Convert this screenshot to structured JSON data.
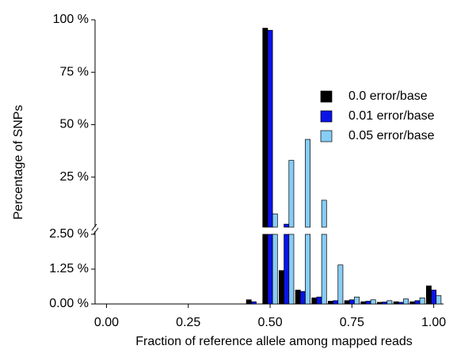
{
  "chart_data": {
    "type": "bar",
    "y_label": "Percentage of SNPs",
    "x_label": "Fraction of reference allele among mapped reads",
    "x": [
      0,
      0.05,
      0.1,
      0.15,
      0.2,
      0.25,
      0.3,
      0.35,
      0.4,
      0.45,
      0.5,
      0.55,
      0.6,
      0.65,
      0.7,
      0.75,
      0.8,
      0.85,
      0.9,
      0.95,
      1
    ],
    "series": [
      {
        "name": "0.0 error/base",
        "color": "#000000",
        "values": [
          0,
          0,
          0,
          0,
          0,
          0,
          0,
          0,
          0,
          0.15,
          96,
          1.2,
          0.5,
          0.22,
          0.1,
          0.12,
          0.08,
          0.06,
          0.08,
          0.08,
          0.65
        ]
      },
      {
        "name": "0.01 error/base",
        "color": "#0a14e6",
        "values": [
          0,
          0,
          0,
          0,
          0,
          0,
          0,
          0,
          0,
          0.08,
          95,
          2.6,
          0.45,
          0.25,
          0.12,
          0.15,
          0.1,
          0.07,
          0.06,
          0.12,
          0.5
        ]
      },
      {
        "name": "0.05 error/base",
        "color": "#87cdf5",
        "values": [
          0,
          0,
          0,
          0,
          0,
          0,
          0,
          0,
          0,
          0,
          7.5,
          33,
          43,
          14,
          1.4,
          0.25,
          0.15,
          0.12,
          0.18,
          0.22,
          0.3
        ]
      }
    ],
    "xlim": [
      -0.035,
      1.03
    ],
    "xticks": [
      {
        "value": 0,
        "label": "0.00"
      },
      {
        "value": 0.25,
        "label": "0.25"
      },
      {
        "value": 0.5,
        "label": "0.50"
      },
      {
        "value": 0.75,
        "label": "0.75"
      },
      {
        "value": 1,
        "label": "1.00"
      }
    ],
    "ylim": [
      0,
      2.5
    ],
    "yticks": [
      {
        "value": 0,
        "label": "0.00 %"
      },
      {
        "value": 1.25,
        "label": "1.25 %"
      },
      {
        "value": 2.5,
        "label": "2.50 %"
      }
    ],
    "y2lim": [
      2.5,
      100
    ],
    "y2ticks": [
      {
        "value": 25,
        "label": "25 %"
      },
      {
        "value": 50,
        "label": "50 %"
      },
      {
        "value": 75,
        "label": "75 %"
      },
      {
        "value": 100,
        "label": "100 %"
      }
    ],
    "legend": "right"
  }
}
